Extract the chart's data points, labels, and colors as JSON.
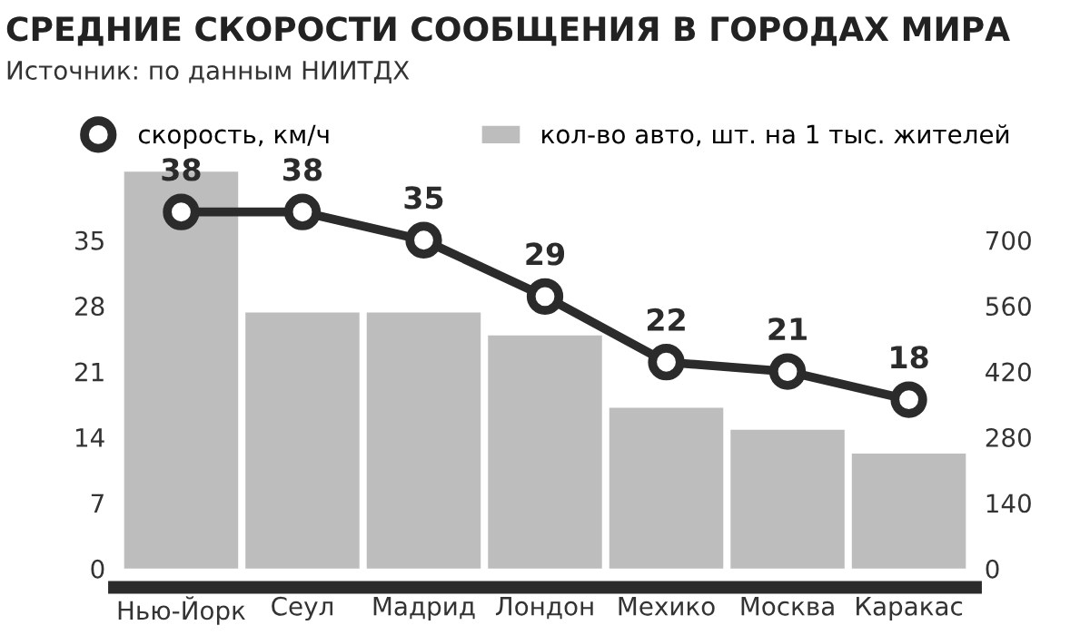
{
  "chart_data": {
    "type": "bar",
    "title": "СРЕДНИЕ СКОРОСТИ СООБЩЕНИЯ В ГОРОДАХ МИРА",
    "subtitle": "Источник: по данным НИИТДХ",
    "categories": [
      "Нью-Йорк",
      "Сеул",
      "Мадрид",
      "Лондон",
      "Мехико",
      "Москва",
      "Каракас"
    ],
    "series": [
      {
        "name": "скорость, км/ч",
        "type": "line",
        "color": "#2b2b2b",
        "values": [
          38,
          38,
          35,
          29,
          22,
          21,
          18
        ],
        "marker": "circle",
        "data_labels": true
      },
      {
        "name": "кол-во авто, шт. на 1 тыс. жителей",
        "axis": "y2",
        "color": "#bdbdbd",
        "values": [
          846,
          546,
          546,
          497,
          343,
          296,
          245
        ]
      }
    ],
    "ylim": [
      -2,
      43
    ],
    "yticks": [
      0,
      7,
      14,
      21,
      28,
      35
    ],
    "y2lim": [
      -40,
      860
    ],
    "y2ticks": [
      0,
      140,
      280,
      420,
      560,
      700
    ],
    "legend": "top",
    "grid": false
  }
}
